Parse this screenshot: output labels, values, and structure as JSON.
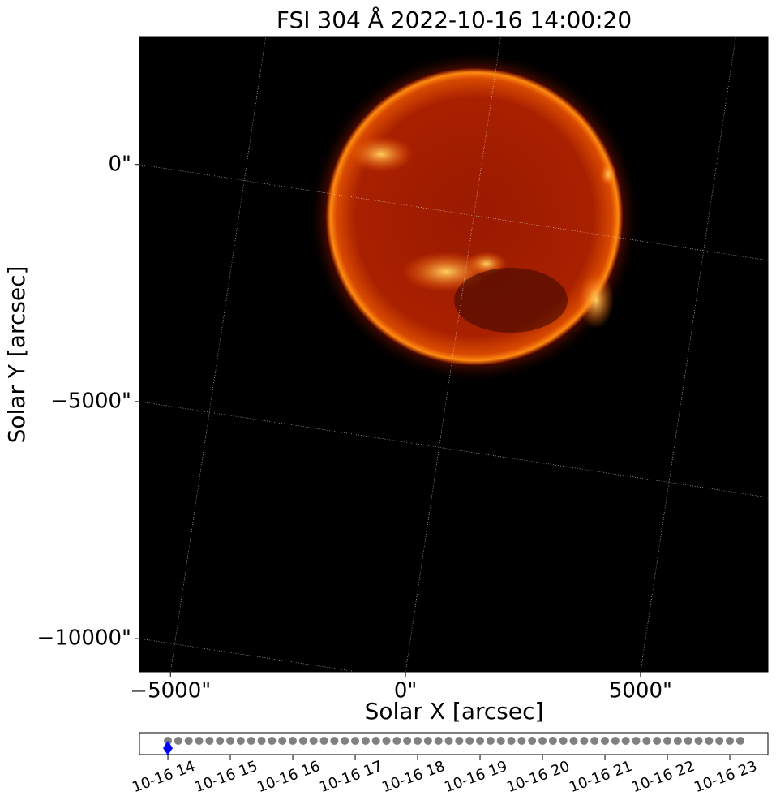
{
  "chart_data": [
    {
      "type": "image",
      "title": "FSI 304 Å 2022-10-16 14:00:20",
      "x_label": "Solar X [arcsec]",
      "y_label": "Solar Y [arcsec]",
      "xlim": [
        -5660,
        7710
      ],
      "ylim": [
        -10700,
        2700
      ],
      "xticks": [
        {
          "value": -5000,
          "label": "−5000\""
        },
        {
          "value": 0,
          "label": "0\""
        },
        {
          "value": 5000,
          "label": "5000\""
        }
      ],
      "yticks": [
        {
          "value": 0,
          "label": "0\""
        },
        {
          "value": -5000,
          "label": "−5000\""
        },
        {
          "value": -10000,
          "label": "−10000\""
        }
      ],
      "grid": true,
      "grid_rotation_deg": 8.6
    },
    {
      "type": "timeline",
      "xlim": [
        13.545,
        23.61
      ],
      "xticks": [
        {
          "value": 14,
          "label": "10-16 14"
        },
        {
          "value": 15,
          "label": "10-16 15"
        },
        {
          "value": 16,
          "label": "10-16 16"
        },
        {
          "value": 17,
          "label": "10-16 17"
        },
        {
          "value": 18,
          "label": "10-16 18"
        },
        {
          "value": 19,
          "label": "10-16 19"
        },
        {
          "value": 20,
          "label": "10-16 20"
        },
        {
          "value": 21,
          "label": "10-16 21"
        },
        {
          "value": 22,
          "label": "10-16 22"
        },
        {
          "value": 23,
          "label": "10-16 23"
        }
      ],
      "x": [
        14,
        14.1667,
        14.3333,
        14.5,
        14.6667,
        14.8333,
        15,
        15.1667,
        15.3333,
        15.5,
        15.6667,
        15.8333,
        16,
        16.1667,
        16.3333,
        16.5,
        16.6667,
        16.8333,
        17,
        17.1667,
        17.3333,
        17.5,
        17.6667,
        17.8333,
        18,
        18.1667,
        18.3333,
        18.5,
        18.6667,
        18.8333,
        19,
        19.1667,
        19.3333,
        19.5,
        19.6667,
        19.8333,
        20,
        20.1667,
        20.3333,
        20.5,
        20.6667,
        20.8333,
        21,
        21.1667,
        21.3333,
        21.5,
        21.6667,
        21.8333,
        22,
        22.1667,
        22.3333,
        22.5,
        22.6667,
        22.8333,
        23,
        23.1667
      ],
      "color": "#808080",
      "highlight": {
        "x": 14,
        "color": "#0000ff"
      }
    }
  ]
}
